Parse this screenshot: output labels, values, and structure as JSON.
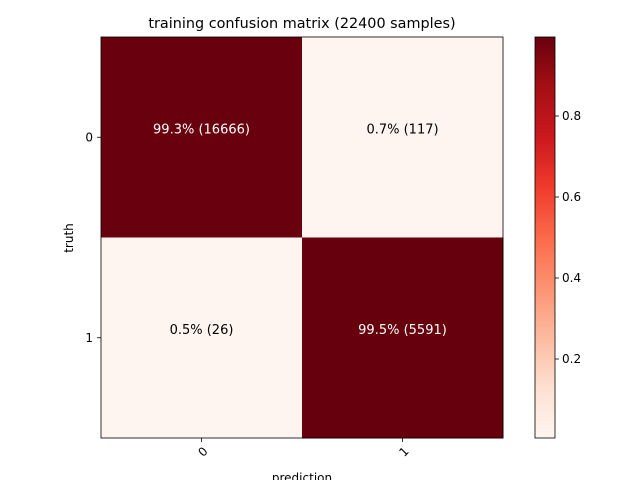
{
  "chart_data": {
    "type": "heatmap",
    "title": "training confusion matrix (22400 samples)",
    "xlabel": "prediction",
    "ylabel": "truth",
    "x_categories": [
      "0",
      "1"
    ],
    "y_categories": [
      "0",
      "1"
    ],
    "values": [
      [
        0.993,
        0.007
      ],
      [
        0.005,
        0.995
      ]
    ],
    "cell_labels": [
      [
        "99.3% (16666)",
        "0.7% (117)"
      ],
      [
        "0.5% (26)",
        "99.5% (5591)"
      ]
    ],
    "colormap": "Reds",
    "colorbar": {
      "range": [
        0.005,
        0.995
      ],
      "ticks": [
        0.2,
        0.4,
        0.6,
        0.8
      ],
      "tick_labels": [
        "0.2",
        "0.4",
        "0.6",
        "0.8"
      ]
    },
    "colors": {
      "high": "#67000d",
      "low": "#fff5f0",
      "text_on_dark": "#ffffff",
      "text_on_light": "#000000"
    }
  }
}
